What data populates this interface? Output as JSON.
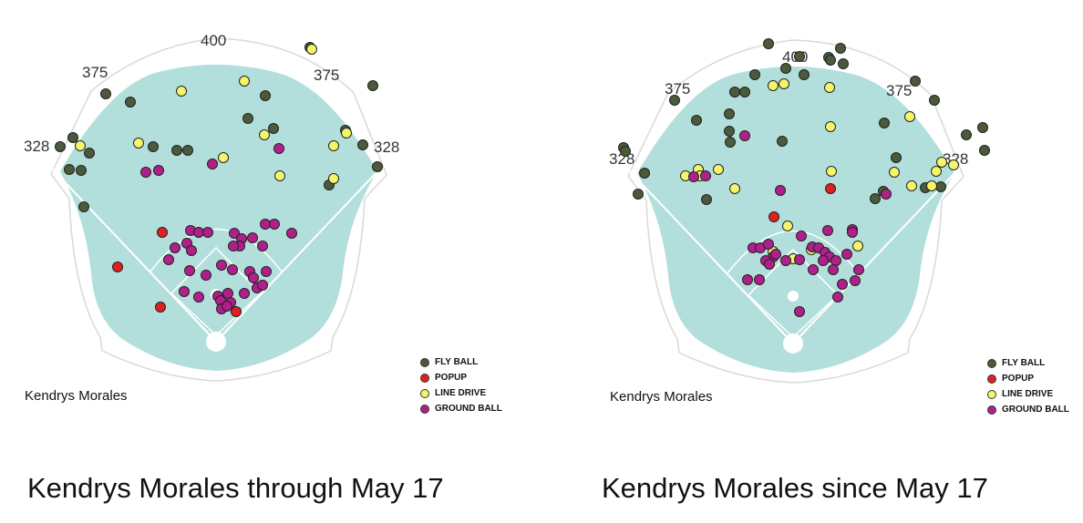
{
  "colors": {
    "field": "#b2dfdb",
    "outline": "#d9d9d9",
    "fly_ball": "#4a5a3a",
    "popup": "#e02020",
    "line_drive": "#f5f56b",
    "ground_ball": "#b0208a"
  },
  "chart_data": [
    {
      "type": "scatter",
      "title": "Kendrys Morales through May 17",
      "player": "Kendrys Morales",
      "distance_labels": [
        "400",
        "375",
        "375",
        "328",
        "328"
      ],
      "legend": [
        "FLY BALL",
        "POPUP",
        "LINE DRIVE",
        "GROUND BALL"
      ],
      "series": [
        {
          "name": "FLY BALL",
          "points": [
            [
              340,
              52
            ],
            [
              409,
              94
            ],
            [
              116,
              103
            ],
            [
              143,
              112
            ],
            [
              291,
              105
            ],
            [
              272,
              130
            ],
            [
              300,
              141
            ],
            [
              379,
              143
            ],
            [
              66,
              161
            ],
            [
              80,
              151
            ],
            [
              98,
              168
            ],
            [
              398,
              159
            ],
            [
              76,
              186
            ],
            [
              89,
              187
            ],
            [
              194,
              165
            ],
            [
              206,
              165
            ],
            [
              168,
              161
            ],
            [
              414,
              183
            ],
            [
              361,
              203
            ],
            [
              92,
              227
            ]
          ]
        },
        {
          "name": "POPUP",
          "points": [
            [
              178,
              255
            ],
            [
              129,
              293
            ],
            [
              176,
              337
            ],
            [
              259,
              342
            ]
          ]
        },
        {
          "name": "LINE DRIVE",
          "points": [
            [
              342,
              54
            ],
            [
              268,
              89
            ],
            [
              199,
              100
            ],
            [
              88,
              160
            ],
            [
              152,
              157
            ],
            [
              290,
              148
            ],
            [
              366,
              160
            ],
            [
              380,
              146
            ],
            [
              245,
              173
            ],
            [
              307,
              193
            ],
            [
              366,
              196
            ]
          ]
        },
        {
          "name": "GROUND BALL",
          "points": [
            [
              306,
              163
            ],
            [
              233,
              180
            ],
            [
              160,
              189
            ],
            [
              174,
              187
            ],
            [
              209,
              253
            ],
            [
              218,
              255
            ],
            [
              228,
              255
            ],
            [
              257,
              256
            ],
            [
              265,
              262
            ],
            [
              277,
              261
            ],
            [
              291,
              246
            ],
            [
              301,
              246
            ],
            [
              320,
              256
            ],
            [
              192,
              272
            ],
            [
              205,
              267
            ],
            [
              210,
              275
            ],
            [
              185,
              285
            ],
            [
              263,
              270
            ],
            [
              256,
              270
            ],
            [
              288,
              270
            ],
            [
              208,
              297
            ],
            [
              226,
              302
            ],
            [
              243,
              291
            ],
            [
              255,
              296
            ],
            [
              274,
              298
            ],
            [
              292,
              298
            ],
            [
              202,
              320
            ],
            [
              218,
              326
            ],
            [
              239,
              325
            ],
            [
              250,
              322
            ],
            [
              253,
              332
            ],
            [
              268,
              322
            ],
            [
              278,
              305
            ],
            [
              282,
              316
            ],
            [
              288,
              313
            ],
            [
              242,
              330
            ],
            [
              243,
              339
            ],
            [
              249,
              336
            ]
          ]
        }
      ]
    },
    {
      "type": "scatter",
      "title": "Kendrys Morales since May 17",
      "player": "Kendrys Morales",
      "distance_labels": [
        "400",
        "375",
        "375",
        "328",
        "328"
      ],
      "legend": [
        "FLY BALL",
        "POPUP",
        "LINE DRIVE",
        "GROUND BALL"
      ],
      "series": [
        {
          "name": "FLY BALL",
          "points": [
            [
              843,
              48
            ],
            [
              909,
              63
            ],
            [
              922,
              53
            ],
            [
              877,
              62
            ],
            [
              862,
              75
            ],
            [
              882,
              82
            ],
            [
              828,
              82
            ],
            [
              806,
              101
            ],
            [
              817,
              101
            ],
            [
              740,
              110
            ],
            [
              764,
              132
            ],
            [
              800,
              125
            ],
            [
              800,
              144
            ],
            [
              801,
              156
            ],
            [
              858,
              155
            ],
            [
              911,
              66
            ],
            [
              925,
              70
            ],
            [
              1004,
              89
            ],
            [
              1025,
              110
            ],
            [
              1078,
              140
            ],
            [
              1060,
              148
            ],
            [
              1080,
              165
            ],
            [
              970,
              135
            ],
            [
              684,
              162
            ],
            [
              686,
              166
            ],
            [
              707,
              190
            ],
            [
              700,
              213
            ],
            [
              775,
              219
            ],
            [
              983,
              173
            ],
            [
              1015,
              206
            ],
            [
              969,
              210
            ],
            [
              960,
              218
            ],
            [
              1032,
              205
            ]
          ]
        },
        {
          "name": "POPUP",
          "points": [
            [
              911,
              207
            ],
            [
              849,
              238
            ]
          ]
        },
        {
          "name": "LINE DRIVE",
          "points": [
            [
              848,
              94
            ],
            [
              860,
              92
            ],
            [
              910,
              96
            ],
            [
              998,
              128
            ],
            [
              911,
              139
            ],
            [
              752,
              193
            ],
            [
              766,
              186
            ],
            [
              788,
              186
            ],
            [
              806,
              207
            ],
            [
              768,
              193
            ],
            [
              912,
              188
            ],
            [
              981,
              189
            ],
            [
              1000,
              204
            ],
            [
              1022,
              204
            ],
            [
              1027,
              188
            ],
            [
              1033,
              178
            ],
            [
              1046,
              181
            ],
            [
              864,
              248
            ],
            [
              870,
              284
            ],
            [
              890,
              274
            ],
            [
              848,
              276
            ],
            [
              941,
              270
            ]
          ]
        },
        {
          "name": "GROUND BALL",
          "points": [
            [
              817,
              149
            ],
            [
              774,
              193
            ],
            [
              761,
              194
            ],
            [
              856,
              209
            ],
            [
              972,
              213
            ],
            [
              908,
              253
            ],
            [
              935,
              252
            ],
            [
              935,
              255
            ],
            [
              879,
              259
            ],
            [
              826,
              272
            ],
            [
              834,
              272
            ],
            [
              843,
              268
            ],
            [
              848,
              282
            ],
            [
              840,
              286
            ],
            [
              844,
              290
            ],
            [
              851,
              279
            ],
            [
              862,
              286
            ],
            [
              877,
              285
            ],
            [
              891,
              271
            ],
            [
              898,
              272
            ],
            [
              905,
              277
            ],
            [
              910,
              282
            ],
            [
              929,
              279
            ],
            [
              917,
              286
            ],
            [
              903,
              286
            ],
            [
              892,
              296
            ],
            [
              914,
              296
            ],
            [
              942,
              296
            ],
            [
              938,
              308
            ],
            [
              924,
              312
            ],
            [
              919,
              326
            ],
            [
              877,
              342
            ],
            [
              820,
              307
            ],
            [
              833,
              307
            ]
          ]
        }
      ]
    }
  ]
}
